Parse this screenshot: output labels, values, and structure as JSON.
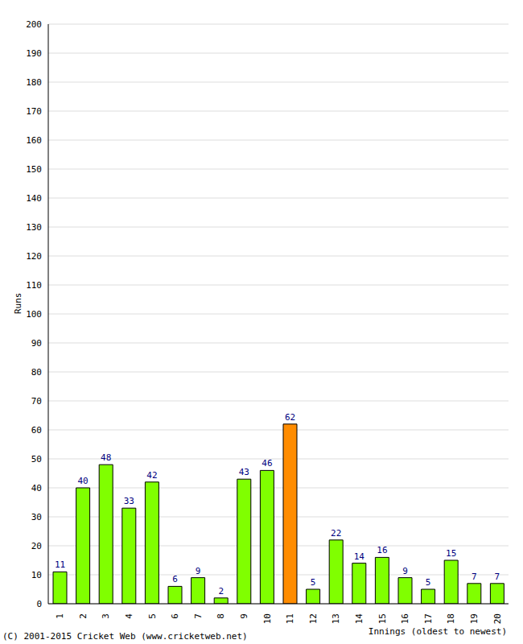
{
  "chart_data": {
    "type": "bar",
    "x_label": "Innings (oldest to newest)",
    "y_label": "Runs",
    "footer": "(C) 2001-2015 Cricket Web (www.cricketweb.net)",
    "categories": [
      "1",
      "2",
      "3",
      "4",
      "5",
      "6",
      "7",
      "8",
      "9",
      "10",
      "11",
      "12",
      "13",
      "14",
      "15",
      "16",
      "17",
      "18",
      "19",
      "20"
    ],
    "values": [
      11,
      40,
      48,
      33,
      42,
      6,
      9,
      2,
      43,
      46,
      62,
      5,
      22,
      14,
      16,
      9,
      5,
      15,
      7,
      7
    ],
    "colors": [
      "#80ff00",
      "#80ff00",
      "#80ff00",
      "#80ff00",
      "#80ff00",
      "#80ff00",
      "#80ff00",
      "#80ff00",
      "#80ff00",
      "#80ff00",
      "#ff8c00",
      "#80ff00",
      "#80ff00",
      "#80ff00",
      "#80ff00",
      "#80ff00",
      "#80ff00",
      "#80ff00",
      "#80ff00",
      "#80ff00"
    ],
    "ylim": [
      0,
      200
    ],
    "yticks": [
      0,
      10,
      20,
      30,
      40,
      50,
      60,
      70,
      80,
      90,
      100,
      110,
      120,
      130,
      140,
      150,
      160,
      170,
      180,
      190,
      200
    ],
    "grid": true,
    "data_labels": true
  }
}
